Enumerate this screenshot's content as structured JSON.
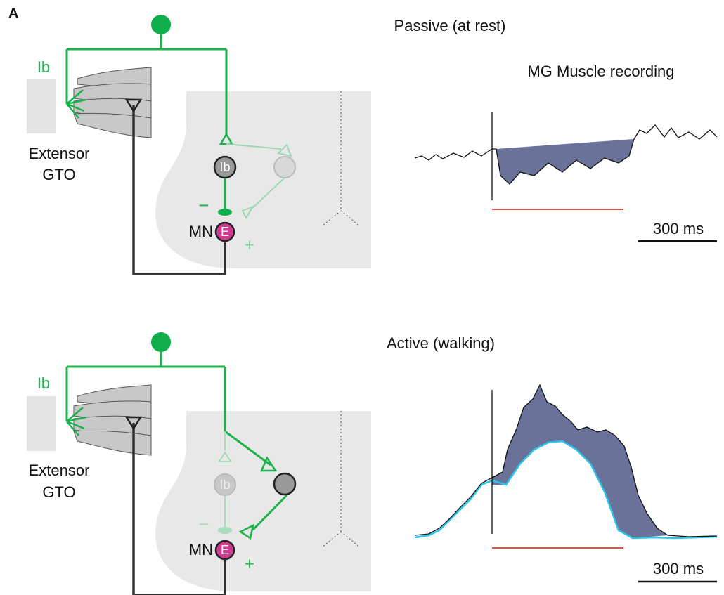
{
  "panel_label": "A",
  "passive": {
    "title": "Passive (at rest)",
    "recording_title": "MG Muscle recording",
    "afferent_label": "Ib",
    "organ_label": [
      "Extensor",
      "GTO"
    ],
    "interneuron_label": "Ib",
    "inhibition_sign": "−",
    "motoneuron_label": "MN",
    "motoneuron_type": "E",
    "excitation_sign": "+",
    "scale_bar": "300 ms"
  },
  "active": {
    "title": "Active (walking)",
    "afferent_label": "Ib",
    "organ_label": [
      "Extensor",
      "GTO"
    ],
    "interneuron_label": "Ib",
    "inhibition_sign": "−",
    "motoneuron_label": "MN",
    "motoneuron_type": "E",
    "excitation_sign": "+",
    "scale_bar": "300 ms"
  }
}
